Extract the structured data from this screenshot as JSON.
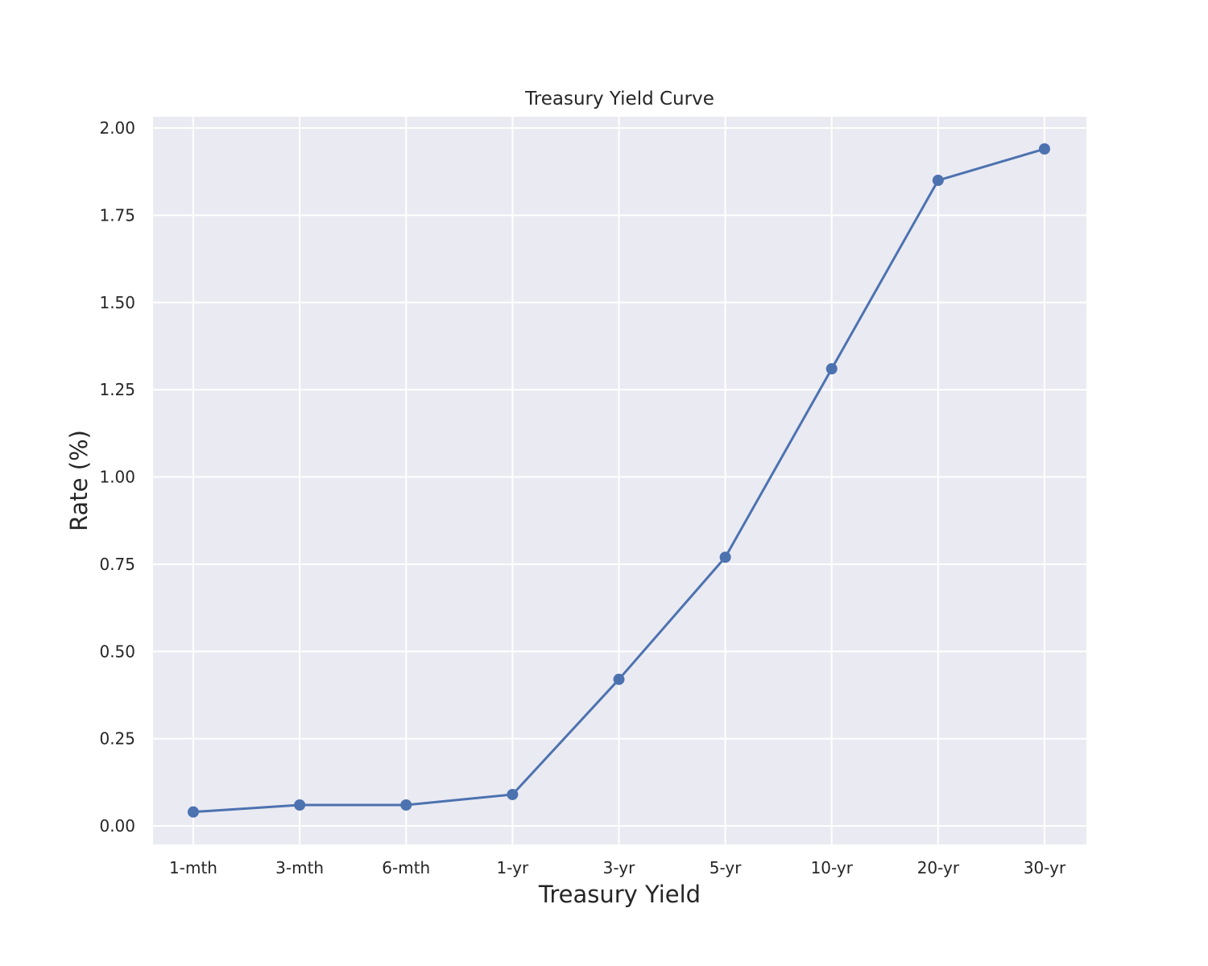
{
  "colors": {
    "plot_background": "#eaeaf2",
    "grid": "#ffffff",
    "series": "#4c72b0",
    "text": "#262626"
  },
  "chart_data": {
    "type": "line",
    "title": "Treasury Yield Curve",
    "xlabel": "Treasury Yield",
    "ylabel": "Rate (%)",
    "categories": [
      "1-mth",
      "3-mth",
      "6-mth",
      "1-yr",
      "3-yr",
      "5-yr",
      "10-yr",
      "20-yr",
      "30-yr"
    ],
    "series": [
      {
        "values": [
          0.04,
          0.06,
          0.06,
          0.09,
          0.42,
          0.77,
          1.31,
          1.85,
          1.94
        ],
        "marker": "circle"
      }
    ],
    "yticks": [
      "0.00",
      "0.25",
      "0.50",
      "0.75",
      "1.00",
      "1.25",
      "1.50",
      "1.75",
      "2.00"
    ],
    "ylim": [
      -0.05,
      2.03
    ],
    "grid": true,
    "legend": false
  }
}
